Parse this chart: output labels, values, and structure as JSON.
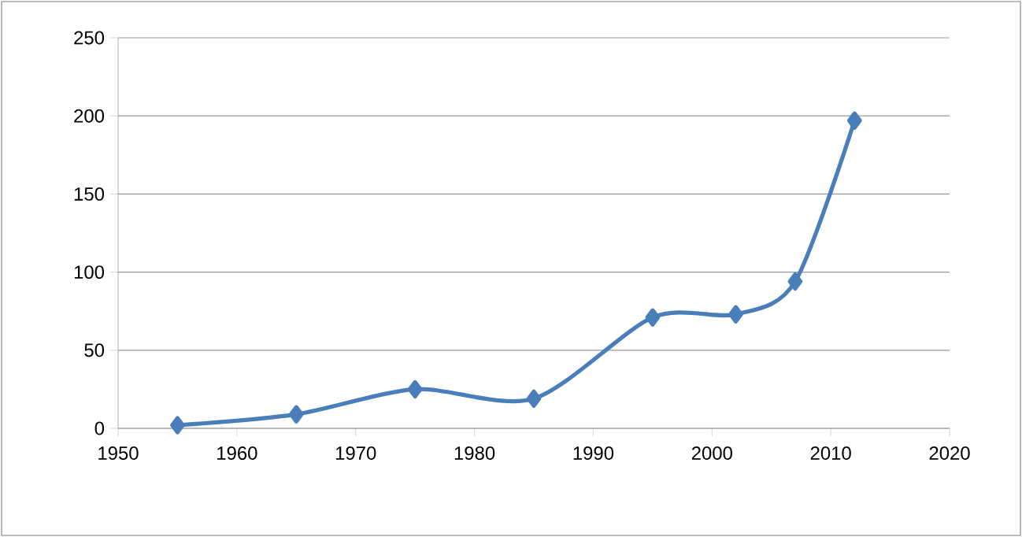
{
  "chart_data": {
    "type": "line",
    "x": [
      1955,
      1965,
      1975,
      1985,
      1995,
      2002,
      2007,
      2012
    ],
    "values": [
      2,
      9,
      25,
      19,
      71,
      73,
      94,
      197
    ],
    "color": "#4a7ebb",
    "marker": "diamond",
    "line_style": "solid",
    "xlim": [
      1950,
      2020
    ],
    "xticks": [
      1950,
      1960,
      1970,
      1980,
      1990,
      2000,
      2010,
      2020
    ],
    "ylim": [
      0,
      250
    ],
    "yticks": [
      0,
      50,
      100,
      150,
      200,
      250
    ],
    "grid": "y"
  }
}
